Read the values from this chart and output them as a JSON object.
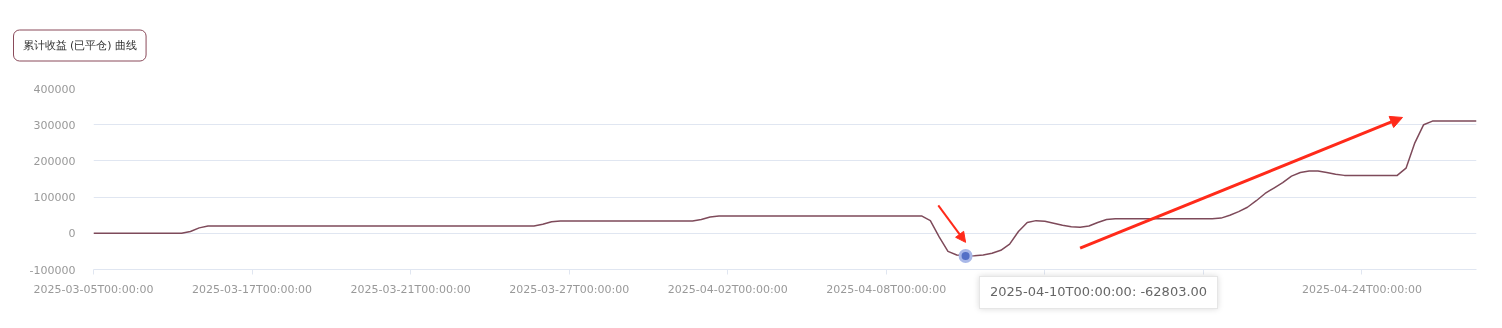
{
  "chart_data": {
    "type": "line",
    "title": "累计收益 (已平仓) 曲线",
    "categories": [
      "2025-03-05T00:00:00",
      null,
      null,
      null,
      null,
      null,
      null,
      null,
      null,
      null,
      null,
      null,
      null,
      null,
      null,
      null,
      null,
      null,
      "2025-03-17T00:00:00",
      null,
      null,
      null,
      null,
      null,
      null,
      null,
      null,
      null,
      null,
      null,
      null,
      null,
      null,
      null,
      null,
      null,
      "2025-03-21T00:00:00",
      null,
      null,
      null,
      null,
      null,
      null,
      null,
      null,
      null,
      null,
      null,
      null,
      null,
      null,
      null,
      null,
      null,
      "2025-03-27T00:00:00",
      null,
      null,
      null,
      null,
      null,
      null,
      null,
      null,
      null,
      null,
      null,
      null,
      null,
      null,
      null,
      null,
      null,
      "2025-04-02T00:00:00",
      null,
      null,
      null,
      null,
      null,
      null,
      null,
      null,
      null,
      null,
      null,
      null,
      null,
      null,
      null,
      null,
      null,
      "2025-04-08T00:00:00",
      null,
      null,
      null,
      null,
      null,
      null,
      null,
      null,
      null,
      null,
      null,
      null,
      null,
      null,
      null,
      null,
      null,
      null,
      null,
      null,
      null,
      null,
      null,
      null,
      null,
      null,
      null,
      null,
      null,
      null,
      null,
      null,
      null,
      null,
      null,
      null,
      null,
      null,
      null,
      null,
      null,
      null,
      null,
      null,
      null,
      null,
      null,
      null,
      null,
      null,
      null,
      null,
      null,
      "2025-04-24T00:00:00",
      null,
      null,
      null,
      null,
      null,
      null,
      null,
      null,
      null,
      null,
      null,
      null,
      null
    ],
    "series": [
      {
        "color": "#7e4a5a",
        "values": [
          0,
          0,
          0,
          0,
          0,
          0,
          0,
          0,
          0,
          0,
          0,
          5000,
          15000,
          20000,
          20000,
          20000,
          20000,
          20000,
          20000,
          20000,
          20000,
          20000,
          20000,
          20000,
          20000,
          20000,
          20000,
          20000,
          20000,
          20000,
          20000,
          20000,
          20000,
          20000,
          20000,
          20000,
          20000,
          20000,
          20000,
          20000,
          20000,
          20000,
          20000,
          20000,
          20000,
          20000,
          20000,
          20000,
          20000,
          20000,
          20000,
          25000,
          32000,
          34000,
          34000,
          34000,
          34000,
          34000,
          34000,
          34000,
          34000,
          34000,
          34000,
          34000,
          34000,
          34000,
          34000,
          34000,
          34000,
          38000,
          45000,
          48000,
          48000,
          48000,
          48000,
          48000,
          48000,
          48000,
          48000,
          48000,
          48000,
          48000,
          48000,
          48000,
          48000,
          48000,
          48000,
          48000,
          48000,
          48000,
          48000,
          48000,
          48000,
          48000,
          48000,
          35000,
          -10000,
          -50000,
          -60000,
          -62803,
          -62000,
          -60000,
          -55000,
          -47000,
          -30000,
          5000,
          30000,
          35000,
          33000,
          28000,
          22000,
          18000,
          17000,
          20000,
          30000,
          38000,
          40000,
          40000,
          40000,
          40000,
          40000,
          40000,
          40000,
          40000,
          40000,
          40000,
          40000,
          40000,
          42000,
          50000,
          60000,
          72000,
          90000,
          110000,
          125000,
          140000,
          158000,
          168000,
          172000,
          172000,
          168000,
          163000,
          160000,
          160000,
          160000,
          160000,
          160000,
          160000,
          160000,
          180000,
          250000,
          300000,
          310000,
          310000,
          310000,
          310000,
          310000,
          310000
        ]
      }
    ],
    "ylim": [
      -100000,
      400000
    ],
    "yticks": [
      -100000,
      0,
      100000,
      200000,
      300000,
      400000
    ],
    "grid": "y",
    "marker": "none",
    "line_style": "solid",
    "annotations": [
      "2025-04-10T00:00:00: -62803.00"
    ]
  }
}
